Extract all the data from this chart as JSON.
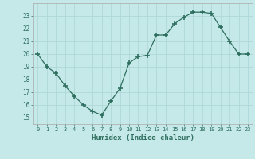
{
  "x": [
    0,
    1,
    2,
    3,
    4,
    5,
    6,
    7,
    8,
    9,
    10,
    11,
    12,
    13,
    14,
    15,
    16,
    17,
    18,
    19,
    20,
    21,
    22,
    23
  ],
  "y": [
    20.0,
    19.0,
    18.5,
    17.5,
    16.7,
    16.0,
    15.5,
    15.2,
    16.3,
    17.3,
    19.3,
    19.8,
    19.9,
    21.5,
    21.5,
    22.4,
    22.9,
    23.3,
    23.3,
    23.2,
    22.1,
    21.0,
    20.0,
    20.0
  ],
  "xlabel": "Humidex (Indice chaleur)",
  "ylim": [
    14.5,
    24.0
  ],
  "xlim": [
    -0.5,
    23.5
  ],
  "yticks": [
    15,
    16,
    17,
    18,
    19,
    20,
    21,
    22,
    23
  ],
  "xticks": [
    0,
    1,
    2,
    3,
    4,
    5,
    6,
    7,
    8,
    9,
    10,
    11,
    12,
    13,
    14,
    15,
    16,
    17,
    18,
    19,
    20,
    21,
    22,
    23
  ],
  "line_color": "#2d6e5e",
  "marker": "+",
  "marker_size": 4,
  "bg_color": "#c5e8e8",
  "grid_color": "#b0d8d8",
  "tick_color": "#2d6e5e",
  "label_color": "#2d6e5e"
}
